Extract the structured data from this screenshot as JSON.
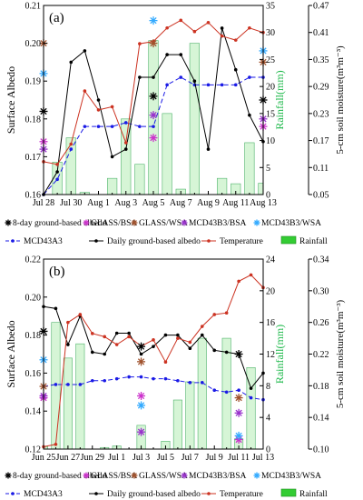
{
  "chart_data": [
    {
      "type": "line",
      "panel_label": "(a)",
      "ylabel": "Surface Albedo",
      "y2label": "Rainfall(mm)",
      "y3label": "5-cm soil moisture(m³m⁻³)",
      "ylim": [
        0.16,
        0.21
      ],
      "y2lim": [
        0,
        35
      ],
      "y3lim": [
        0.05,
        0.47
      ],
      "xlim": [
        0,
        16
      ],
      "yticks": [
        0.16,
        0.17,
        0.18,
        0.19,
        0.2,
        0.21
      ],
      "y2ticks": [
        0,
        5,
        10,
        15,
        20,
        25,
        30,
        35
      ],
      "y3ticks": [
        0.05,
        0.11,
        0.17,
        0.23,
        0.29,
        0.35,
        0.41,
        0.47
      ],
      "xtick_labels": [
        "Jul 28",
        "Jul 30",
        "Aug 1",
        "Aug 3",
        "Aug 5",
        "Aug 7",
        "Aug 9",
        "Aug 11",
        "Aug 13"
      ],
      "xtick_positions": [
        0,
        2,
        4,
        6,
        8,
        10,
        12,
        14,
        16
      ],
      "series": [
        {
          "name": "8-day ground-based albedo",
          "kind": "marker",
          "color": "#000000",
          "x": [
            0,
            8,
            16
          ],
          "y": [
            0.182,
            0.186,
            0.185
          ]
        },
        {
          "name": "GLASS/BSA",
          "kind": "marker",
          "color": "#cc33cc",
          "x": [
            0,
            8,
            16
          ],
          "y": [
            0.174,
            0.175,
            0.178
          ]
        },
        {
          "name": "GLASS/WSA",
          "kind": "marker",
          "color": "#a0522d",
          "x": [
            0,
            8,
            16
          ],
          "y": [
            0.2,
            0.2,
            0.195
          ]
        },
        {
          "name": "MCD43B3/BSA",
          "kind": "marker",
          "color": "#9933cc",
          "x": [
            0,
            8,
            16
          ],
          "y": [
            0.172,
            0.181,
            0.18
          ]
        },
        {
          "name": "MCD43B3/WSA",
          "kind": "marker",
          "color": "#33aaff",
          "x": [
            0,
            8,
            16
          ],
          "y": [
            0.192,
            0.206,
            0.198
          ]
        },
        {
          "name": "MCD43A3",
          "kind": "dashed-line",
          "color": "#1a1ae6",
          "x": [
            0,
            1,
            2,
            3,
            4,
            5,
            6,
            7,
            8,
            9,
            10,
            11,
            12,
            13,
            14,
            15,
            16
          ],
          "y": [
            0.16,
            0.164,
            0.172,
            0.178,
            0.178,
            0.178,
            0.179,
            0.178,
            0.178,
            0.189,
            0.191,
            0.189,
            0.189,
            0.189,
            0.189,
            0.191,
            0.191
          ]
        },
        {
          "name": "Daily ground-based albedo",
          "kind": "line",
          "color": "#000000",
          "x": [
            0,
            1,
            2,
            3,
            4,
            5,
            6,
            7,
            8,
            9,
            10,
            11,
            12,
            13,
            14,
            15,
            16
          ],
          "y": [
            0.16,
            0.166,
            0.195,
            0.198,
            0.185,
            0.17,
            0.172,
            0.191,
            0.191,
            0.197,
            0.197,
            0.19,
            0.172,
            0.204,
            0.193,
            0.181,
            0.174
          ]
        },
        {
          "name": "Temperature",
          "kind": "line",
          "color": "#cc3322",
          "axis": "y3",
          "x": [
            0,
            1,
            2,
            3,
            4,
            5,
            6,
            7,
            8,
            9,
            10,
            11,
            12,
            13,
            14,
            15,
            16
          ],
          "y": [
            0.123,
            0.117,
            0.162,
            0.28,
            0.238,
            0.245,
            0.165,
            0.385,
            0.39,
            0.42,
            0.437,
            0.412,
            0.432,
            0.402,
            0.393,
            0.42,
            0.41
          ]
        },
        {
          "name": "Rainfall",
          "kind": "bar",
          "color": "#d6f5d6",
          "axis": "y2",
          "x": [
            1,
            2,
            3,
            5,
            6,
            7,
            8,
            9,
            10,
            11,
            13,
            14,
            15,
            16
          ],
          "y": [
            6,
            10.5,
            0.4,
            3,
            14,
            5.6,
            28.5,
            15,
            1,
            28,
            3,
            2,
            9.6,
            2.1
          ]
        }
      ]
    },
    {
      "type": "line",
      "panel_label": "(b)",
      "ylabel": "Surface Albedo",
      "y2label": "Rainfall(mm)",
      "y3label": "5-cm soil moisture(m³m⁻³)",
      "ylim": [
        0.12,
        0.22
      ],
      "y2lim": [
        0,
        24
      ],
      "y3lim": [
        0.1,
        0.34
      ],
      "xlim": [
        0,
        18
      ],
      "yticks": [
        0.12,
        0.14,
        0.16,
        0.18,
        0.2,
        0.22
      ],
      "y2ticks": [
        0,
        4,
        8,
        12,
        16,
        20,
        24
      ],
      "y3ticks": [
        0.1,
        0.14,
        0.18,
        0.22,
        0.26,
        0.3,
        0.34
      ],
      "xtick_labels": [
        "Jun 25",
        "Jun 27",
        "Jun 29",
        "Jul 1",
        "Jul 3",
        "Jul 5",
        "Jul 7",
        "Jul 9",
        "Jul 11",
        "Jul 13"
      ],
      "xtick_positions": [
        0,
        2,
        4,
        6,
        8,
        10,
        12,
        14,
        16,
        18
      ],
      "series": [
        {
          "name": "8-day ground-based albedo",
          "kind": "marker",
          "color": "#000000",
          "x": [
            0,
            8,
            16
          ],
          "y": [
            0.182,
            0.174,
            0.17
          ]
        },
        {
          "name": "GLASS/BSA",
          "kind": "marker",
          "color": "#cc33cc",
          "x": [
            0,
            8,
            16
          ],
          "y": [
            0.147,
            0.148,
            0.125
          ]
        },
        {
          "name": "GLASS/WSA",
          "kind": "marker",
          "color": "#a0522d",
          "x": [
            0,
            8,
            16
          ],
          "y": [
            0.153,
            0.166,
            0.147
          ]
        },
        {
          "name": "MCD43B3/BSA",
          "kind": "marker",
          "color": "#9933cc",
          "x": [
            0,
            8,
            16
          ],
          "y": [
            0.148,
            0.129,
            0.139
          ]
        },
        {
          "name": "MCD43B3/WSA",
          "kind": "marker",
          "color": "#33aaff",
          "x": [
            0,
            8,
            16
          ],
          "y": [
            0.167,
            0.143,
            0.127
          ]
        },
        {
          "name": "MCD43A3",
          "kind": "dashed-line",
          "color": "#1a1ae6",
          "x": [
            0,
            1,
            2,
            3,
            4,
            5,
            6,
            7,
            8,
            9,
            10,
            11,
            12,
            13,
            14,
            15,
            16,
            17,
            18
          ],
          "y": [
            0.153,
            0.154,
            0.154,
            0.154,
            0.156,
            0.156,
            0.157,
            0.158,
            0.158,
            0.157,
            0.157,
            0.156,
            0.155,
            0.155,
            0.151,
            0.15,
            0.151,
            0.147,
            0.146
          ]
        },
        {
          "name": "Daily ground-based albedo",
          "kind": "line",
          "color": "#000000",
          "x": [
            0,
            1,
            2,
            3,
            4,
            5,
            6,
            7,
            8,
            9,
            10,
            11,
            12,
            13,
            14,
            15,
            16,
            17,
            18
          ],
          "y": [
            0.195,
            0.194,
            0.175,
            0.19,
            0.171,
            0.17,
            0.181,
            0.181,
            0.17,
            0.174,
            0.18,
            0.18,
            0.173,
            0.18,
            0.172,
            0.171,
            0.17,
            0.152,
            0.16
          ]
        },
        {
          "name": "Temperature",
          "kind": "line",
          "color": "#cc3322",
          "axis": "y3",
          "x": [
            0,
            1,
            2,
            3,
            4,
            5,
            6,
            7,
            8,
            9,
            10,
            11,
            12,
            13,
            14,
            15,
            16,
            17,
            18
          ],
          "y": [
            0.103,
            0.106,
            0.26,
            0.27,
            0.246,
            0.242,
            0.232,
            0.242,
            0.23,
            0.238,
            0.21,
            0.24,
            0.235,
            0.255,
            0.27,
            0.272,
            0.312,
            0.32,
            0.304
          ]
        },
        {
          "name": "Rainfall",
          "kind": "bar",
          "color": "#d6f5d6",
          "axis": "y2",
          "x": [
            0,
            1,
            2,
            3,
            5,
            6,
            8,
            10,
            11,
            12,
            13,
            15,
            16,
            17
          ],
          "y": [
            0.3,
            16,
            11.5,
            13.3,
            0.2,
            0.4,
            3,
            1,
            6.2,
            8.5,
            14,
            14,
            1.3,
            10.3
          ]
        }
      ]
    }
  ],
  "legend": {
    "row1": [
      "8-day ground-based albedo",
      "GLASS/BSA",
      "GLASS/WSA",
      "MCD43B3/BSA",
      "MCD43B3/WSA"
    ],
    "row2": [
      "MCD43A3",
      "Daily ground-based albedo",
      "Temperature",
      "Rainfall"
    ]
  }
}
